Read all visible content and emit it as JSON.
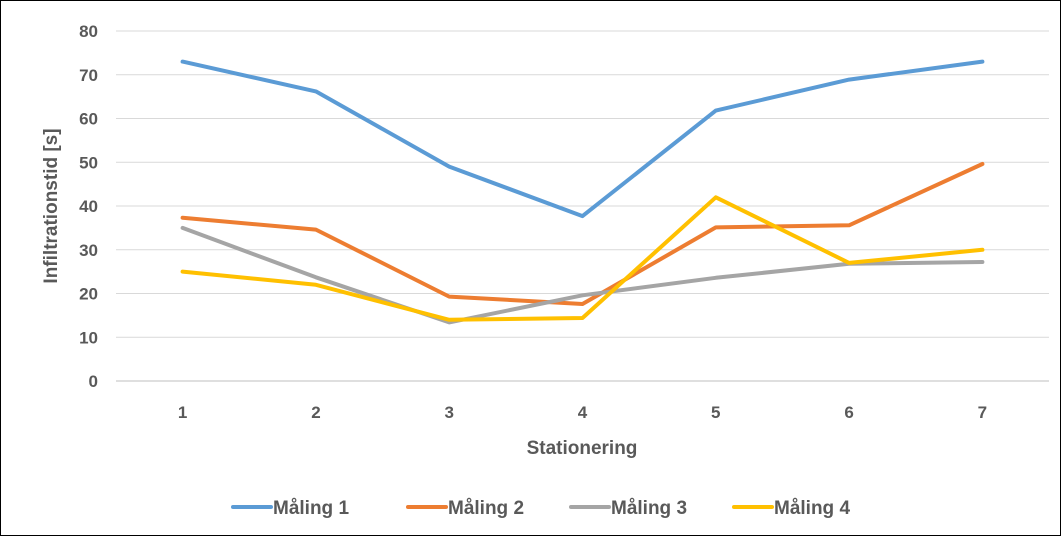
{
  "chart_data": {
    "type": "line",
    "x": [
      "1",
      "2",
      "3",
      "4",
      "5",
      "6",
      "7"
    ],
    "xlabel": "Stationering",
    "ylabel": "Infiltrationstid [s]",
    "ylim": [
      0,
      80
    ],
    "yticks": [
      "0",
      "10",
      "20",
      "30",
      "40",
      "50",
      "60",
      "70",
      "80"
    ],
    "grid": true,
    "legend_position": "bottom",
    "series": [
      {
        "name": "Måling 1",
        "color": "#5B9BD5",
        "values": [
          73,
          66.2,
          49,
          37.7,
          61.8,
          68.9,
          73
        ]
      },
      {
        "name": "Måling 2",
        "color": "#ED7D31",
        "values": [
          37.3,
          34.6,
          19.3,
          17.6,
          35.1,
          35.6,
          49.6
        ]
      },
      {
        "name": "Måling 3",
        "color": "#A5A5A5",
        "values": [
          35,
          23.7,
          13.4,
          19.6,
          23.6,
          26.8,
          27.2
        ]
      },
      {
        "name": "Måling 4",
        "color": "#FFC000",
        "values": [
          25,
          22,
          14,
          14.4,
          42,
          27,
          30
        ]
      }
    ]
  }
}
